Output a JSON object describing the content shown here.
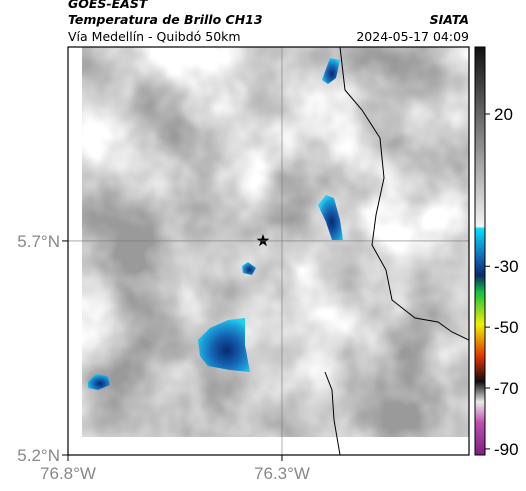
{
  "header": {
    "satellite": "GOES-EAST",
    "product": "Temperatura de Brillo CH13",
    "agency": "SIATA",
    "region": "Vía Medellín - Quibdó 50km",
    "timestamp": "2024-05-17 04:09"
  },
  "map": {
    "xlim": [
      -76.8,
      -75.863
    ],
    "ylim": [
      5.2,
      6.153
    ],
    "xticks": [
      {
        "value": -76.8,
        "label": "76.8°W"
      },
      {
        "value": -76.3,
        "label": "76.3°W"
      }
    ],
    "yticks": [
      {
        "value": 5.2,
        "label": "5.2°N"
      },
      {
        "value": 5.7,
        "label": "5.7°N"
      }
    ],
    "grid": true
  },
  "colorbar": {
    "lim": [
      42,
      -92
    ],
    "ticks": [
      20,
      -30,
      -50,
      -70,
      -90
    ]
  }
}
